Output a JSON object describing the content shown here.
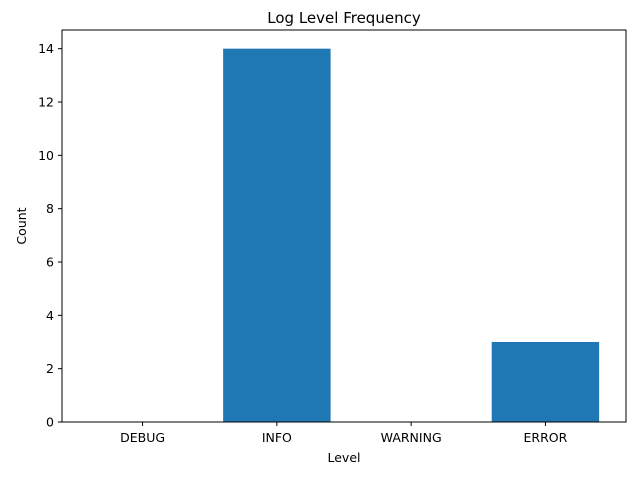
{
  "chart_data": {
    "type": "bar",
    "title": "Log Level Frequency",
    "xlabel": "Level",
    "ylabel": "Count",
    "categories": [
      "DEBUG",
      "INFO",
      "WARNING",
      "ERROR"
    ],
    "values": [
      0,
      14,
      0,
      3
    ],
    "ylim": [
      0,
      14.7
    ],
    "yticks": [
      0,
      2,
      4,
      6,
      8,
      10,
      12,
      14
    ],
    "grid": false,
    "bar_color": "#1f77b4"
  }
}
